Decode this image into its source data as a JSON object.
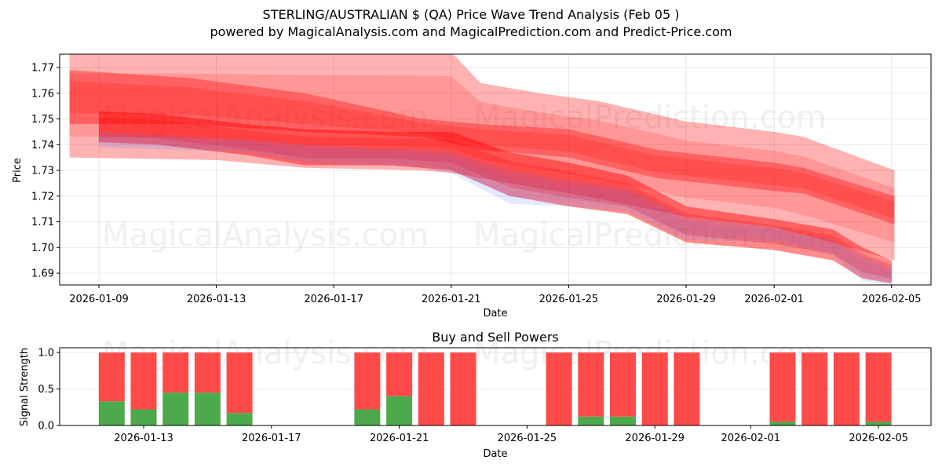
{
  "header": {
    "title": "STERLING/AUSTRALIAN $ (QA) Price Wave Trend Analysis (Feb 05 )",
    "subtitle": "powered by MagicalAnalysis.com and MagicalPrediction.com and Predict-Price.com"
  },
  "watermarks": [
    "MagicalAnalysis.com",
    "MagicalPrediction.com"
  ],
  "colors": {
    "band_red": "#ff0000",
    "band_blue": "#4d6bff",
    "buy": "#4caa4c",
    "sell": "#ff4a4a",
    "grid": "#e0e0e0"
  },
  "chart_data": [
    {
      "type": "area",
      "title": "",
      "xlabel": "Date",
      "ylabel": "Price",
      "ylim": [
        1.6855,
        1.7755
      ],
      "xlim": [
        "2026-01-07",
        "2026-02-06"
      ],
      "grid": true,
      "y_ticks": [
        "1.69",
        "1.70",
        "1.71",
        "1.72",
        "1.73",
        "1.74",
        "1.75",
        "1.76",
        "1.77"
      ],
      "x_ticks": [
        "2026-01-09",
        "2026-01-13",
        "2026-01-17",
        "2026-01-21",
        "2026-01-25",
        "2026-01-29",
        "2026-02-01",
        "2026-02-05"
      ],
      "series": [
        {
          "name": "wide-upper-band",
          "color": "#ff0000",
          "opacity": 0.3,
          "x": [
            "2026-01-08",
            "2026-01-13",
            "2026-01-16",
            "2026-01-20",
            "2026-01-21",
            "2026-01-22",
            "2026-01-24",
            "2026-01-26",
            "2026-01-29",
            "2026-02-01",
            "2026-02-02",
            "2026-02-05.1"
          ],
          "upper": [
            1.776,
            1.776,
            1.776,
            1.776,
            1.776,
            1.764,
            1.76,
            1.757,
            1.749,
            1.745,
            1.743,
            1.73
          ],
          "lower": [
            1.735,
            1.734,
            1.731,
            1.73,
            1.729,
            1.727,
            1.723,
            1.719,
            1.712,
            1.708,
            1.705,
            1.695
          ]
        },
        {
          "name": "upper-trend-band",
          "color": "#ff0000",
          "opacity": 0.35,
          "x": [
            "2026-01-08",
            "2026-01-12",
            "2026-01-16",
            "2026-01-20",
            "2026-01-22",
            "2026-01-25",
            "2026-01-28",
            "2026-02-01",
            "2026-02-02",
            "2026-02-05.1"
          ],
          "upper": [
            1.769,
            1.766,
            1.76,
            1.75,
            1.748,
            1.746,
            1.738,
            1.733,
            1.731,
            1.72
          ],
          "lower": [
            1.748,
            1.748,
            1.745,
            1.743,
            1.738,
            1.735,
            1.727,
            1.722,
            1.721,
            1.709
          ]
        },
        {
          "name": "core-price-band",
          "color": "#ff0000",
          "opacity": 0.45,
          "x": [
            "2026-01-09",
            "2026-01-11",
            "2026-01-14",
            "2026-01-16",
            "2026-01-19",
            "2026-01-21",
            "2026-01-23",
            "2026-01-25",
            "2026-01-27",
            "2026-01-29",
            "2026-02-01",
            "2026-02-03",
            "2026-02-04",
            "2026-02-05"
          ],
          "upper": [
            1.753,
            1.752,
            1.748,
            1.746,
            1.745,
            1.745,
            1.737,
            1.733,
            1.728,
            1.716,
            1.711,
            1.707,
            1.7,
            1.695
          ],
          "lower": [
            1.741,
            1.74,
            1.736,
            1.732,
            1.732,
            1.73,
            1.72,
            1.716,
            1.713,
            1.702,
            1.699,
            1.695,
            1.688,
            1.686
          ]
        },
        {
          "name": "blue-lower-band",
          "color": "#4d6bff",
          "opacity": 0.15,
          "x": [
            "2026-01-09",
            "2026-01-14",
            "2026-01-16",
            "2026-01-20",
            "2026-01-21",
            "2026-01-23",
            "2026-01-25",
            "2026-01-27",
            "2026-01-29",
            "2026-02-01",
            "2026-02-03",
            "2026-02-04",
            "2026-02-05"
          ],
          "upper": [
            1.745,
            1.742,
            1.74,
            1.738,
            1.737,
            1.73,
            1.726,
            1.723,
            1.712,
            1.708,
            1.703,
            1.697,
            1.692
          ],
          "lower": [
            1.739,
            1.737,
            1.733,
            1.731,
            1.729,
            1.717,
            1.716,
            1.714,
            1.703,
            1.702,
            1.697,
            1.687,
            1.685
          ]
        }
      ]
    },
    {
      "type": "bar",
      "title": "Buy and Sell Powers",
      "xlabel": "Date",
      "ylabel": "Signal Strength",
      "ylim": [
        0,
        1.05
      ],
      "grid": true,
      "y_ticks": [
        "0.0",
        "0.5",
        "1.0"
      ],
      "x_ticks": [
        "2026-01-13",
        "2026-01-17",
        "2026-01-21",
        "2026-01-25",
        "2026-01-29",
        "2026-02-01",
        "2026-02-05"
      ],
      "categories": [
        "2026-01-12",
        "2026-01-13",
        "2026-01-14",
        "2026-01-15",
        "2026-01-16",
        "2026-01-20",
        "2026-01-21",
        "2026-01-22",
        "2026-01-23",
        "2026-01-26",
        "2026-01-27",
        "2026-01-28",
        "2026-01-29",
        "2026-01-30",
        "2026-02-02",
        "2026-02-03",
        "2026-02-04",
        "2026-02-05"
      ],
      "series": [
        {
          "name": "Buy",
          "color": "#4caa4c",
          "values": [
            0.33,
            0.22,
            0.45,
            0.45,
            0.17,
            0.22,
            0.4,
            0.0,
            0.0,
            0.0,
            0.12,
            0.12,
            0.0,
            0.0,
            0.05,
            0.0,
            0.0,
            0.05
          ]
        },
        {
          "name": "Sell",
          "color": "#ff4a4a",
          "values": [
            0.67,
            0.78,
            0.55,
            0.55,
            0.83,
            0.78,
            0.6,
            1.0,
            1.0,
            1.0,
            0.88,
            0.88,
            1.0,
            1.0,
            0.95,
            1.0,
            1.0,
            0.95
          ]
        }
      ]
    }
  ]
}
